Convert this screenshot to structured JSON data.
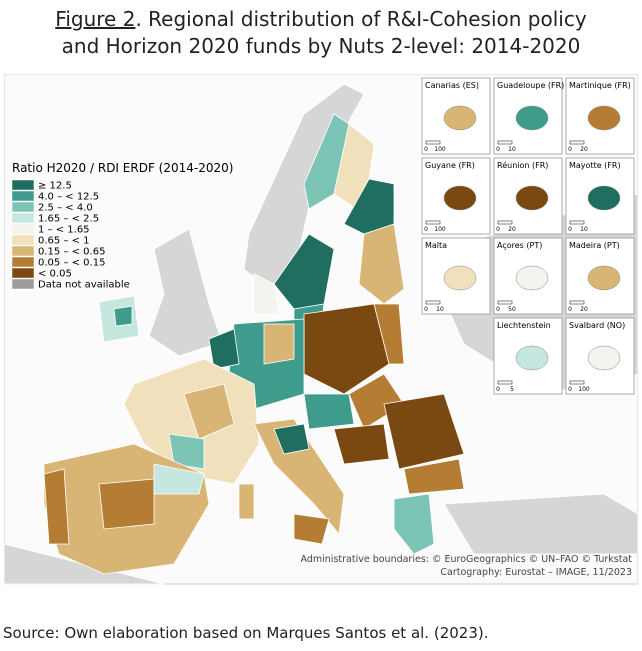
{
  "header": {
    "title_link": "Figure 2",
    "title": ". Regional distribution of R&I-Cohesion policy and Horizon 2020 funds by Nuts 2-level: 2014-2020"
  },
  "legend": {
    "title": "Ratio H2020 / RDI ERDF (2014-2020)",
    "items": [
      {
        "label": "≥ 12.5",
        "color": "#1f6e60"
      },
      {
        "label": "4.0 – < 12.5",
        "color": "#3f9c8c"
      },
      {
        "label": "2.5 – < 4.0",
        "color": "#7cc4b5"
      },
      {
        "label": "1.65 – < 2.5",
        "color": "#c5e7df"
      },
      {
        "label": "1 – < 1.65",
        "color": "#f4f3ee"
      },
      {
        "label": "0.65 – < 1",
        "color": "#f0e0bc"
      },
      {
        "label": "0.15 – < 0.65",
        "color": "#d8b574"
      },
      {
        "label": "0.05 – < 0.15",
        "color": "#b57d33"
      },
      {
        "label": "< 0.05",
        "color": "#7a4811"
      },
      {
        "label": "Data not available",
        "color": "#9b9b9b"
      }
    ]
  },
  "insets": [
    {
      "label": "Canarias (ES)",
      "scale": [
        0,
        100
      ]
    },
    {
      "label": "Guadeloupe (FR)",
      "scale": [
        0,
        10
      ]
    },
    {
      "label": "Martinique (FR)",
      "scale": [
        0,
        20
      ]
    },
    {
      "label": "Guyane (FR)",
      "scale": [
        0,
        100
      ]
    },
    {
      "label": "Réunion (FR)",
      "scale": [
        0,
        20
      ]
    },
    {
      "label": "Mayotte (FR)",
      "scale": [
        0,
        10
      ]
    },
    {
      "label": "Malta",
      "scale": [
        0,
        10
      ]
    },
    {
      "label": "Açores (PT)",
      "scale": [
        0,
        50
      ]
    },
    {
      "label": "Madeira (PT)",
      "scale": [
        0,
        20
      ]
    },
    {
      "label": "Liechtenstein",
      "scale": [
        0,
        5
      ]
    },
    {
      "label": "Svalbard (NO)",
      "scale": [
        0,
        100
      ]
    }
  ],
  "credits": [
    "Administrative boundaries: © EuroGeographics © UN–FAO © Turkstat",
    "Cartography: Eurostat – IMAGE, 11/2023"
  ],
  "source": "Source: Own elaboration based on Marques Santos et al. (2023)."
}
